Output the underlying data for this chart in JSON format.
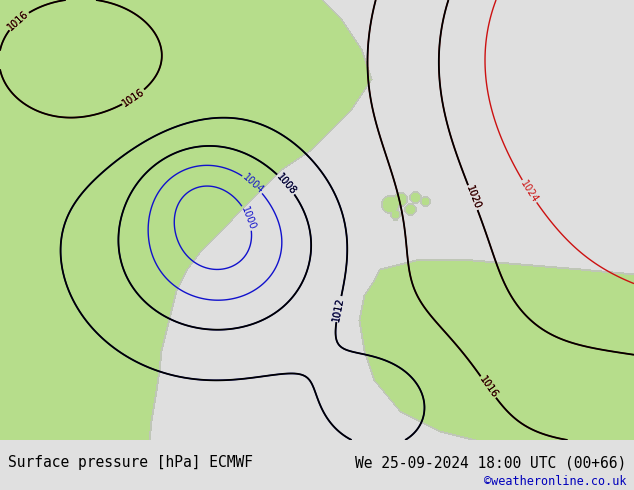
{
  "title_left": "Surface pressure [hPa] ECMWF",
  "title_right": "We 25-09-2024 18:00 UTC (00+66)",
  "copyright": "©weatheronline.co.uk",
  "sea_color": [
    0.878,
    0.878,
    0.878
  ],
  "land_color": [
    0.714,
    0.867,
    0.549
  ],
  "title_fontsize": 10.5,
  "copyright_color": "#0000bb",
  "footer_bg": "#e0e0e0",
  "map_bg": "#e0e0e0"
}
